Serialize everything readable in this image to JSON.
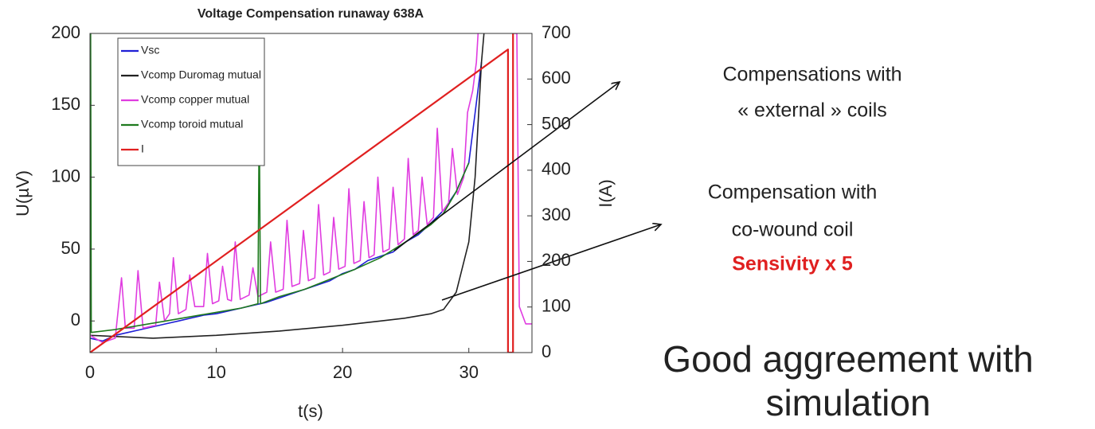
{
  "chart_data": {
    "type": "line",
    "title": "Voltage Compensation runaway 638A",
    "x_label": "t(s)",
    "y_label": "U(µV)",
    "y2_label": "I(A)",
    "xlim": [
      0,
      35
    ],
    "xticks": [
      0,
      10,
      20,
      30
    ],
    "ylim": [
      -22,
      200
    ],
    "yticks": [
      0,
      50,
      100,
      150,
      200
    ],
    "y2lim": [
      0,
      700
    ],
    "y2ticks": [
      0,
      100,
      200,
      300,
      400,
      500,
      600,
      700
    ],
    "legend": "upper-left",
    "series": [
      {
        "name": "Vsc",
        "color": "#1f1fd6",
        "x": [
          0,
          1,
          2,
          3,
          4,
          5,
          6,
          7,
          8,
          9,
          10,
          11,
          12,
          13,
          14,
          15,
          16,
          17,
          18,
          19,
          20,
          21,
          22,
          23,
          24,
          25,
          26,
          27,
          28,
          29,
          30,
          31
        ],
        "values": [
          -12,
          -14,
          -10,
          -8,
          -6,
          -4,
          -2,
          0,
          2,
          4,
          5,
          7,
          9,
          11,
          13,
          16,
          19,
          22,
          25,
          28,
          33,
          36,
          42,
          45,
          48,
          55,
          60,
          68,
          77,
          90,
          110,
          180
        ]
      },
      {
        "name": "Vcomp Duromag mutual",
        "color": "#222222",
        "x": [
          0,
          5,
          10,
          15,
          20,
          23,
          25,
          27,
          28,
          29,
          30,
          30.5,
          31,
          31.3
        ],
        "values": [
          -10,
          -12,
          -10,
          -7,
          -3,
          0,
          2,
          5,
          8,
          20,
          55,
          100,
          180,
          210
        ]
      },
      {
        "name": "Vcomp copper mutual",
        "color": "#e03ce0",
        "x": [
          0,
          1,
          2,
          2.5,
          2.8,
          3.5,
          3.8,
          4.2,
          5.2,
          5.5,
          5.9,
          6.3,
          6.6,
          7,
          7.6,
          7.9,
          8.3,
          9,
          9.3,
          9.7,
          10.2,
          10.5,
          10.9,
          11.2,
          11.5,
          11.9,
          12.6,
          12.9,
          13.3,
          14,
          14.3,
          14.7,
          15.3,
          15.6,
          16,
          16.6,
          16.9,
          17.3,
          17.8,
          18.1,
          18.5,
          19,
          19.3,
          19.7,
          20.2,
          20.5,
          20.9,
          21.4,
          21.7,
          22.1,
          22.5,
          22.8,
          23.2,
          23.7,
          24,
          24.4,
          24.9,
          25.2,
          25.6,
          26,
          26.3,
          26.7,
          27.2,
          27.5,
          27.9,
          28.4,
          28.7,
          29.1,
          29.6,
          29.9,
          30.3,
          30.6,
          30.8,
          33.5,
          33.6,
          33.8,
          34,
          34.5,
          35
        ],
        "values": [
          -10,
          -15,
          -12,
          30,
          -5,
          -5,
          35,
          -5,
          -3,
          27,
          0,
          5,
          44,
          5,
          8,
          32,
          10,
          10,
          47,
          12,
          14,
          38,
          15,
          14,
          55,
          15,
          18,
          37,
          17,
          20,
          55,
          20,
          22,
          70,
          24,
          26,
          63,
          28,
          30,
          81,
          32,
          34,
          72,
          36,
          38,
          92,
          40,
          42,
          83,
          44,
          46,
          100,
          48,
          50,
          93,
          53,
          57,
          113,
          60,
          63,
          100,
          67,
          72,
          134,
          76,
          82,
          120,
          88,
          100,
          145,
          160,
          180,
          210,
          210,
          200,
          200,
          10,
          -2,
          -2
        ]
      },
      {
        "name": "Vcomp toroid mutual",
        "color": "#1e7a1e",
        "x": [
          0,
          0.05,
          0.1,
          2,
          4,
          6,
          8,
          10,
          12,
          13.3,
          13.4,
          13.5,
          15,
          17,
          19,
          21,
          23,
          25,
          27,
          28,
          29,
          30
        ],
        "values": [
          -20,
          200,
          -8,
          -6,
          -3,
          0,
          3,
          6,
          9,
          12,
          145,
          12,
          17,
          22,
          29,
          36,
          44,
          55,
          67,
          75,
          90,
          110
        ]
      },
      {
        "name": "I",
        "color": "#e02020",
        "axis": "y2",
        "x": [
          0,
          33.1,
          33.1,
          33.5,
          33.5
        ],
        "values": [
          0,
          665,
          0,
          0,
          700
        ]
      }
    ]
  },
  "annotations": {
    "external": [
      "Compensations with",
      "« external » coils"
    ],
    "cowound": [
      "Compensation with",
      "co-wound coil"
    ],
    "sensitivity": "Sensivity x 5",
    "conclusion": [
      "Good aggreement with",
      "simulation"
    ]
  }
}
